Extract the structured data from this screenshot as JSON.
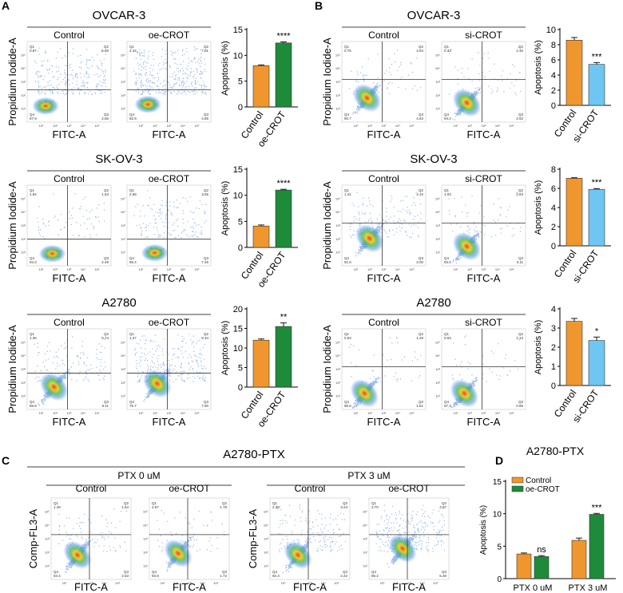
{
  "panel_letters": [
    "A",
    "B",
    "C",
    "D"
  ],
  "axis_labels": {
    "pi": "Propidium Iodide-A",
    "fitc": "FITC-A",
    "fl3": "Comp-FL3-A",
    "apoptosis": "Apoptosis (%)"
  },
  "flow_ticks": [
    "10⁰",
    "10¹",
    "10²",
    "10³",
    "10⁴",
    "10⁵"
  ],
  "chart_data": [
    {
      "id": "A1",
      "type": "flow_cytometry",
      "panel": "A",
      "title": "OVCAR-3",
      "plots": [
        {
          "label": "Control",
          "quadrants": {
            "Q1": "0.87",
            "Q2": "5.55",
            "Q3": "2.56",
            "Q4": "87.9"
          }
        },
        {
          "label": "oe-CROT",
          "quadrants": {
            "Q1": "4.34",
            "Q2": "7.01",
            "Q3": "4.89",
            "Q4": "82.9"
          }
        }
      ]
    },
    {
      "id": "A1bar",
      "type": "bar",
      "panel": "A",
      "categories": [
        "Control",
        "oe-CROT"
      ],
      "values": [
        8.0,
        12.4
      ],
      "errors": [
        0.15,
        0.2
      ],
      "ylim": [
        0,
        15
      ],
      "yticks": [
        0,
        5,
        10,
        15
      ],
      "ylabel": "Apoptosis (%)",
      "colors": [
        "#F0962E",
        "#1E8B3A"
      ],
      "significance": "****"
    },
    {
      "id": "A2",
      "type": "flow_cytometry",
      "panel": "A",
      "title": "SK-OV-3",
      "plots": [
        {
          "label": "Control",
          "quadrants": {
            "Q1": "1.84",
            "Q2": "1.53",
            "Q3": "2.49",
            "Q4": "94.3"
          }
        },
        {
          "label": "oe-CROT",
          "quadrants": {
            "Q1": "2.58",
            "Q2": "3.55",
            "Q3": "7.46",
            "Q4": "86.4"
          }
        }
      ]
    },
    {
      "id": "A2bar",
      "type": "bar",
      "panel": "A",
      "categories": [
        "Control",
        "oe-CROT"
      ],
      "values": [
        4.1,
        11.0
      ],
      "errors": [
        0.2,
        0.15
      ],
      "ylim": [
        0,
        15
      ],
      "yticks": [
        0,
        5,
        10,
        15
      ],
      "ylabel": "Apoptosis (%)",
      "colors": [
        "#F0962E",
        "#1E8B3A"
      ],
      "significance": "****"
    },
    {
      "id": "A3",
      "type": "flow_cytometry",
      "panel": "A",
      "title": "A2780",
      "plots": [
        {
          "label": "Control",
          "quadrants": {
            "Q1": "1.36",
            "Q2": "5.74",
            "Q3": "6.11",
            "Q4": "86.8"
          }
        },
        {
          "label": "oe-CROT",
          "quadrants": {
            "Q1": "1.27",
            "Q2": "8.14",
            "Q3": "7.90",
            "Q4": "75.7"
          }
        }
      ]
    },
    {
      "id": "A3bar",
      "type": "bar",
      "panel": "A",
      "categories": [
        "Control",
        "oe-CROT"
      ],
      "values": [
        12.0,
        15.5
      ],
      "errors": [
        0.3,
        0.9
      ],
      "ylim": [
        0,
        20
      ],
      "yticks": [
        0,
        5,
        10,
        15,
        20
      ],
      "ylabel": "Apoptosis (%)",
      "colors": [
        "#F0962E",
        "#1E8B3A"
      ],
      "significance": "**"
    },
    {
      "id": "B1",
      "type": "flow_cytometry",
      "panel": "B",
      "title": "OVCAR-3",
      "plots": [
        {
          "label": "Control",
          "quadrants": {
            "Q1": "0.75",
            "Q2": "3.94",
            "Q3": "4.63",
            "Q4": "90.7"
          }
        },
        {
          "label": "si-CROT",
          "quadrants": {
            "Q1": "0.33",
            "Q2": "2.46",
            "Q3": "2.92",
            "Q4": "94.2"
          }
        }
      ]
    },
    {
      "id": "B1bar",
      "type": "bar",
      "panel": "B",
      "categories": [
        "Control",
        "si-CROT"
      ],
      "values": [
        8.6,
        5.4
      ],
      "errors": [
        0.35,
        0.25
      ],
      "ylim": [
        0,
        10
      ],
      "yticks": [
        0,
        2,
        4,
        6,
        8,
        10
      ],
      "ylabel": "Apoptosis (%)",
      "colors": [
        "#F0962E",
        "#6EC6F2"
      ],
      "significance": "***"
    },
    {
      "id": "B2",
      "type": "flow_cytometry",
      "panel": "B",
      "title": "SK-OV-3",
      "plots": [
        {
          "label": "Control",
          "quadrants": {
            "Q1": "1.41",
            "Q2": "4.10",
            "Q3": "3.00",
            "Q4": "91.5"
          }
        },
        {
          "label": "si-CROT",
          "quadrants": {
            "Q1": "1.03",
            "Q2": "2.83",
            "Q3": "3.11",
            "Q4": "93.0"
          }
        }
      ]
    },
    {
      "id": "B2bar",
      "type": "bar",
      "panel": "B",
      "categories": [
        "Control",
        "si-CROT"
      ],
      "values": [
        7.05,
        5.9
      ],
      "errors": [
        0.06,
        0.08
      ],
      "ylim": [
        0,
        8
      ],
      "yticks": [
        0,
        2,
        4,
        6,
        8
      ],
      "ylabel": "Apoptosis (%)",
      "colors": [
        "#F0962E",
        "#6EC6F2"
      ],
      "significance": "***"
    },
    {
      "id": "B3",
      "type": "flow_cytometry",
      "panel": "B",
      "title": "A2780",
      "plots": [
        {
          "label": "Control",
          "quadrants": {
            "Q1": "0.53",
            "Q2": "1.28",
            "Q3": "1.61",
            "Q4": "96.6"
          }
        },
        {
          "label": "si-CROT",
          "quadrants": {
            "Q1": "0.63",
            "Q2": "1.13",
            "Q3": "0.95",
            "Q4": "97.3"
          }
        }
      ]
    },
    {
      "id": "B3bar",
      "type": "bar",
      "panel": "B",
      "categories": [
        "Control",
        "si-CROT"
      ],
      "values": [
        3.35,
        2.35
      ],
      "errors": [
        0.15,
        0.18
      ],
      "ylim": [
        0,
        4
      ],
      "yticks": [
        0,
        1,
        2,
        3,
        4
      ],
      "ylabel": "Apoptosis (%)",
      "colors": [
        "#F0962E",
        "#6EC6F2"
      ],
      "significance": "*"
    },
    {
      "id": "C",
      "type": "flow_cytometry",
      "panel": "C",
      "title": "A2780-PTX",
      "groups": [
        "PTX 0 uM",
        "PTX 3 uM"
      ],
      "plots": [
        {
          "group": "PTX 0 uM",
          "label": "Control",
          "quadrants": {
            "Q1": "1.49",
            "Q2": "1.54",
            "Q3": "2.53",
            "Q4": "94.4"
          }
        },
        {
          "group": "PTX 0 uM",
          "label": "oe-CROT",
          "quadrants": {
            "Q1": "2.67",
            "Q2": "1.78",
            "Q3": "1.72",
            "Q4": "93.8"
          }
        },
        {
          "group": "PTX 3 uM",
          "label": "Control",
          "quadrants": {
            "Q1": "2.35",
            "Q2": "3.24",
            "Q3": "2.22",
            "Q4": "92.3"
          }
        },
        {
          "group": "PTX 3 uM",
          "label": "oe-CROT",
          "quadrants": {
            "Q1": "3.70",
            "Q2": "4.87",
            "Q3": "5.30",
            "Q4": "86.2"
          }
        }
      ]
    },
    {
      "id": "D",
      "type": "bar",
      "panel": "D",
      "title": "A2780-PTX",
      "categories": [
        "PTX 0 uM",
        "PTX 3 uM"
      ],
      "series": [
        {
          "name": "Control",
          "values": [
            3.8,
            5.9
          ],
          "errors": [
            0.15,
            0.35
          ]
        },
        {
          "name": "oe-CROT",
          "values": [
            3.4,
            9.9
          ],
          "errors": [
            0.15,
            0.15
          ]
        }
      ],
      "ylim": [
        0,
        15
      ],
      "yticks": [
        0,
        5,
        10,
        15
      ],
      "ylabel": "Apoptosis (%)",
      "colors": [
        "#F0962E",
        "#1E8B3A"
      ],
      "significance": [
        "ns",
        "***"
      ],
      "legend": "top-left"
    }
  ]
}
